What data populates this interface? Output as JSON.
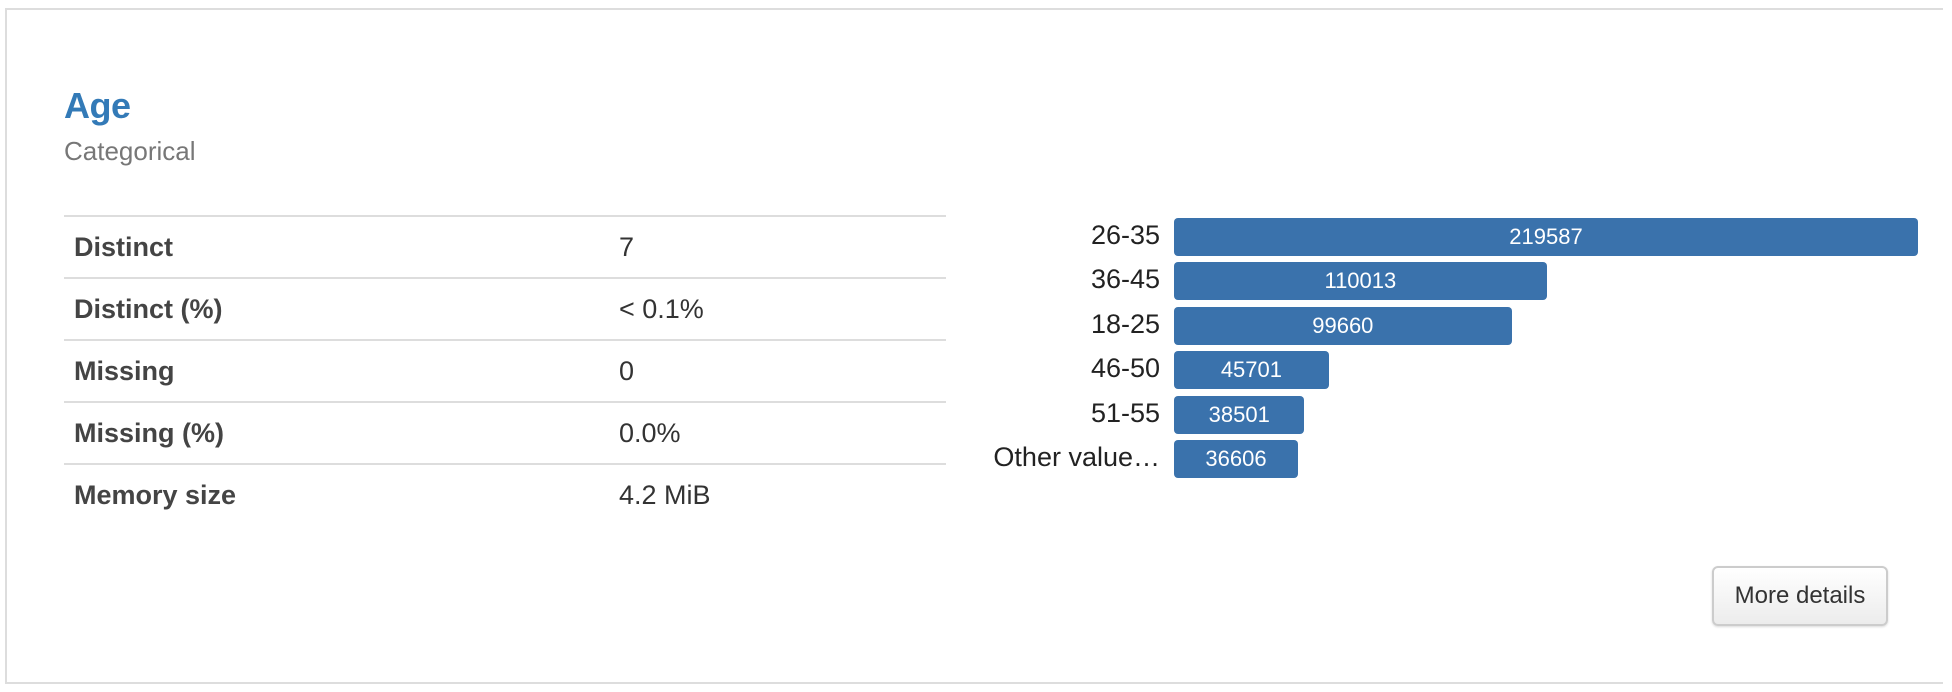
{
  "variable": {
    "name": "Age",
    "type": "Categorical"
  },
  "stats": [
    {
      "label": "Distinct",
      "value": "7"
    },
    {
      "label": "Distinct (%)",
      "value": "< 0.1%"
    },
    {
      "label": "Missing",
      "value": "0"
    },
    {
      "label": "Missing (%)",
      "value": "0.0%"
    },
    {
      "label": "Memory size",
      "value": "4.2 MiB"
    }
  ],
  "chart_data": {
    "type": "bar",
    "orientation": "horizontal",
    "categories": [
      "26-35",
      "36-45",
      "18-25",
      "46-50",
      "51-55",
      "Other value…"
    ],
    "values": [
      219587,
      110013,
      99660,
      45701,
      38501,
      36606
    ],
    "bar_color": "#3a72ac",
    "data_labels": [
      "219587",
      "110013",
      "99660",
      "45701",
      "38501",
      "36606"
    ]
  },
  "actions": {
    "more_details": "More details"
  }
}
